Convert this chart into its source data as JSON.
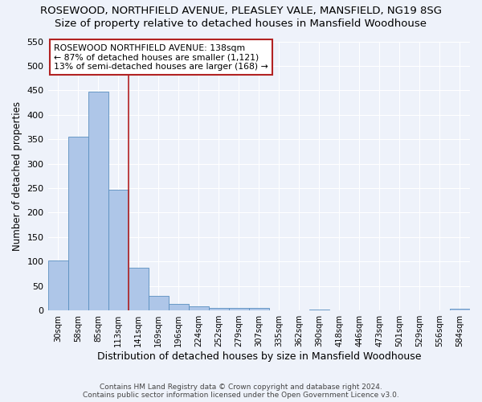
{
  "title1": "ROSEWOOD, NORTHFIELD AVENUE, PLEASLEY VALE, MANSFIELD, NG19 8SG",
  "title2": "Size of property relative to detached houses in Mansfield Woodhouse",
  "xlabel": "Distribution of detached houses by size in Mansfield Woodhouse",
  "ylabel": "Number of detached properties",
  "footnote": "Contains HM Land Registry data © Crown copyright and database right 2024.\nContains public sector information licensed under the Open Government Licence v3.0.",
  "bar_labels": [
    "30sqm",
    "58sqm",
    "85sqm",
    "113sqm",
    "141sqm",
    "169sqm",
    "196sqm",
    "224sqm",
    "252sqm",
    "279sqm",
    "307sqm",
    "335sqm",
    "362sqm",
    "390sqm",
    "418sqm",
    "446sqm",
    "473sqm",
    "501sqm",
    "529sqm",
    "556sqm",
    "584sqm"
  ],
  "bar_values": [
    103,
    355,
    447,
    247,
    88,
    30,
    14,
    8,
    5,
    5,
    5,
    0,
    0,
    2,
    0,
    0,
    0,
    0,
    0,
    0,
    3
  ],
  "bar_color": "#aec6e8",
  "bar_edge_color": "#5a8fc0",
  "vline_x": 4,
  "vline_color": "#b22222",
  "annotation_text": "ROSEWOOD NORTHFIELD AVENUE: 138sqm\n← 87% of detached houses are smaller (1,121)\n13% of semi-detached houses are larger (168) →",
  "annotation_box_color": "#b22222",
  "ylim": [
    0,
    550
  ],
  "yticks": [
    0,
    50,
    100,
    150,
    200,
    250,
    300,
    350,
    400,
    450,
    500,
    550
  ],
  "bg_color": "#eef2fa",
  "grid_color": "#ffffff",
  "title1_fontsize": 9.5,
  "title2_fontsize": 9.5,
  "xlabel_fontsize": 9,
  "ylabel_fontsize": 8.5,
  "footnote_fontsize": 6.5
}
